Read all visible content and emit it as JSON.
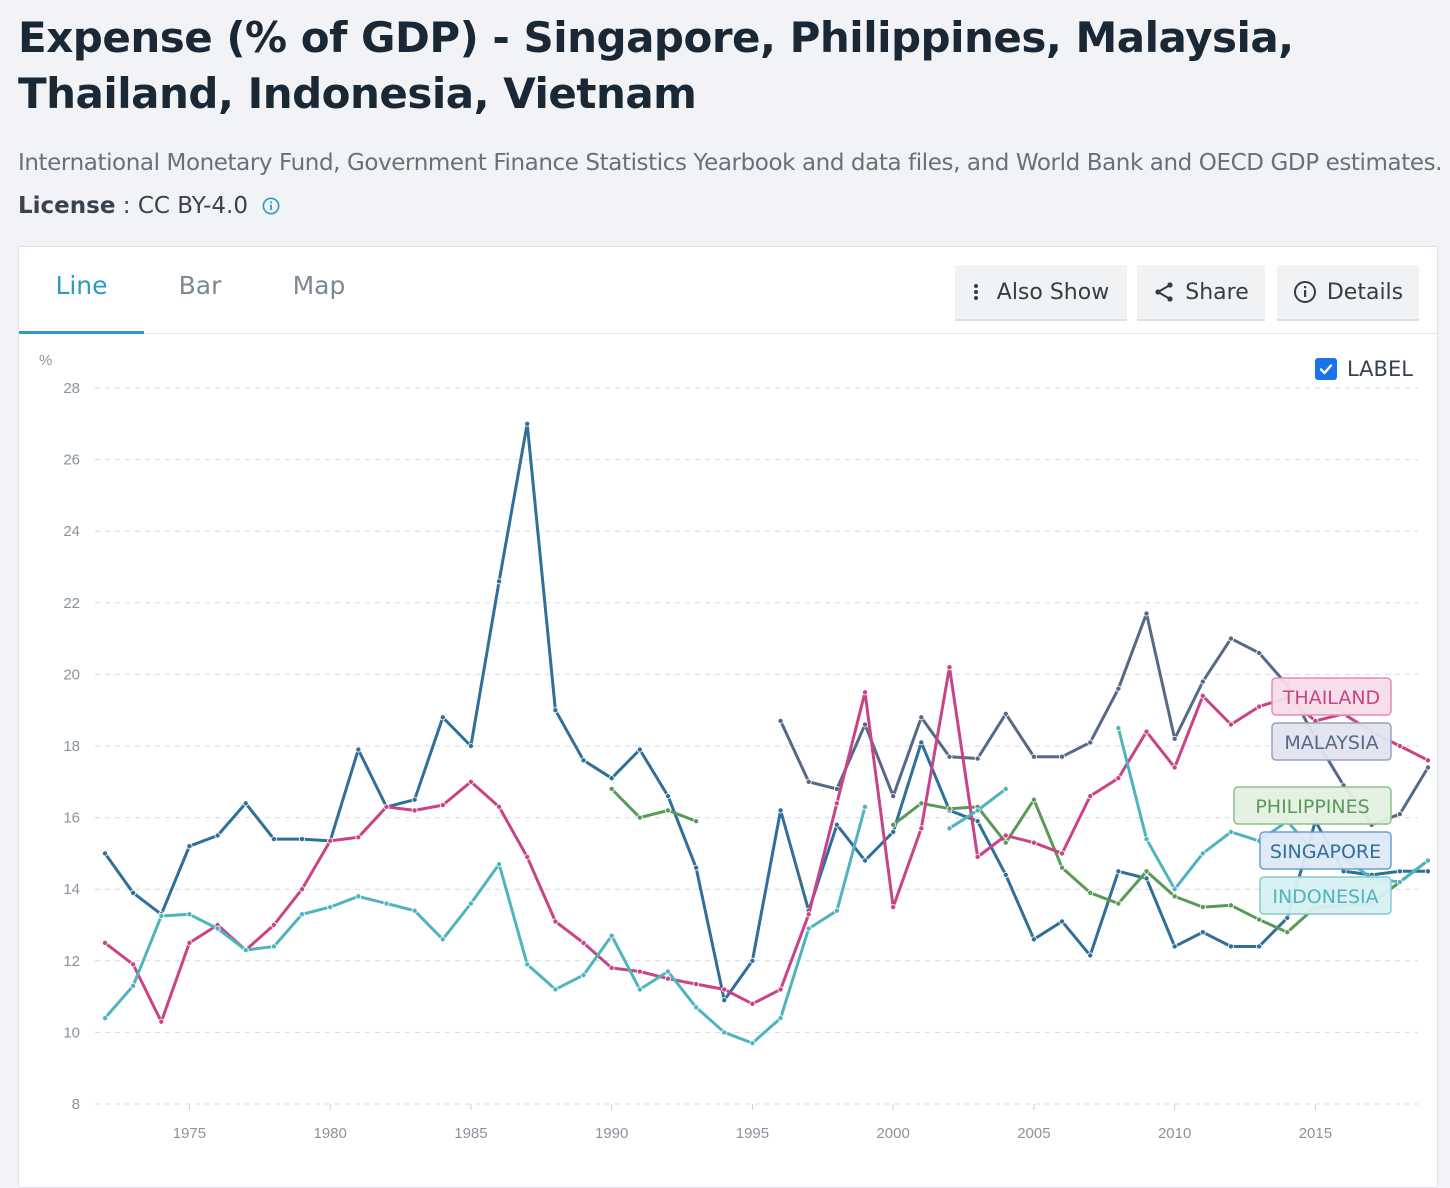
{
  "header": {
    "title": "Expense (% of GDP) - Singapore, Philippines, Malaysia, Thailand, Indonesia, Vietnam",
    "source": "International Monetary Fund, Government Finance Statistics Yearbook and data files, and World Bank and OECD GDP estimates.",
    "license_label": "License",
    "license_sep": " : ",
    "license_value": "CC BY-4.0",
    "info_icon": "info-icon"
  },
  "tabs": [
    {
      "label": "Line",
      "active": true
    },
    {
      "label": "Bar",
      "active": false
    },
    {
      "label": "Map",
      "active": false
    }
  ],
  "toolbar": {
    "also_show": "Also Show",
    "share": "Share",
    "details": "Details"
  },
  "label_toggle": {
    "label": "LABEL",
    "checked": true
  },
  "chart_data": {
    "type": "line",
    "ylabel": "%",
    "ylim": [
      8,
      28
    ],
    "yticks": [
      8,
      10,
      12,
      14,
      16,
      18,
      20,
      22,
      24,
      26,
      28
    ],
    "xlim": [
      1972,
      2019
    ],
    "xticks": [
      1975,
      1980,
      1985,
      1990,
      1995,
      2000,
      2005,
      2010,
      2015
    ],
    "grid": true,
    "series": [
      {
        "name": "SINGAPORE",
        "color": "#2f6f99",
        "label_bg": "#dde9f5",
        "label_border": "#6b9fd0",
        "label_color": "#2f6f99",
        "points": [
          [
            1972,
            15.0
          ],
          [
            1973,
            13.9
          ],
          [
            1974,
            13.3
          ],
          [
            1975,
            15.2
          ],
          [
            1976,
            15.5
          ],
          [
            1977,
            16.4
          ],
          [
            1978,
            15.4
          ],
          [
            1979,
            15.4
          ],
          [
            1980,
            15.35
          ],
          [
            1981,
            17.9
          ],
          [
            1982,
            16.3
          ],
          [
            1983,
            16.5
          ],
          [
            1984,
            18.8
          ],
          [
            1985,
            18.0
          ],
          [
            1986,
            22.6
          ],
          [
            1987,
            27.0
          ],
          [
            1988,
            19.0
          ],
          [
            1989,
            17.6
          ],
          [
            1990,
            17.1
          ],
          [
            1991,
            17.9
          ],
          [
            1992,
            16.6
          ],
          [
            1993,
            14.6
          ],
          [
            1994,
            10.9
          ],
          [
            1995,
            12.0
          ],
          [
            1996,
            16.2
          ],
          [
            1997,
            13.4
          ],
          [
            1998,
            15.8
          ],
          [
            1999,
            14.8
          ],
          [
            2000,
            15.6
          ],
          [
            2001,
            18.1
          ],
          [
            2002,
            16.2
          ],
          [
            2003,
            15.9
          ],
          [
            2004,
            14.4
          ],
          [
            2005,
            12.6
          ],
          [
            2006,
            13.1
          ],
          [
            2007,
            12.15
          ],
          [
            2008,
            14.5
          ],
          [
            2009,
            14.3
          ],
          [
            2010,
            12.4
          ],
          [
            2011,
            12.8
          ],
          [
            2012,
            12.4
          ],
          [
            2013,
            12.4
          ],
          [
            2014,
            13.2
          ],
          [
            2015,
            15.9
          ],
          [
            2016,
            14.5
          ],
          [
            2017,
            14.4
          ],
          [
            2018,
            14.5
          ],
          [
            2019,
            14.5
          ]
        ]
      },
      {
        "name": "PHILIPPINES",
        "color": "#5a9a58",
        "label_bg": "#e4f1e2",
        "label_border": "#8cc18a",
        "label_color": "#5a9a58",
        "points": [
          [
            1990,
            16.8
          ],
          [
            1991,
            16.0
          ],
          [
            1992,
            16.2
          ],
          [
            1993,
            15.9
          ],
          null,
          [
            2000,
            15.8
          ],
          [
            2001,
            16.4
          ],
          [
            2002,
            16.25
          ],
          [
            2003,
            16.3
          ],
          [
            2004,
            15.3
          ],
          [
            2005,
            16.5
          ],
          [
            2006,
            14.6
          ],
          [
            2007,
            13.9
          ],
          [
            2008,
            13.6
          ],
          [
            2009,
            14.5
          ],
          [
            2010,
            13.8
          ],
          [
            2011,
            13.5
          ],
          [
            2012,
            13.55
          ],
          [
            2013,
            13.15
          ],
          [
            2014,
            12.8
          ],
          [
            2015,
            13.5
          ],
          [
            2016,
            13.55
          ],
          [
            2017,
            13.6
          ],
          [
            2018,
            14.2
          ],
          [
            2019,
            14.8
          ]
        ]
      },
      {
        "name": "MALAYSIA",
        "color": "#566a88",
        "label_bg": "#e2e5f0",
        "label_border": "#9aa2c4",
        "label_color": "#566a88",
        "points": [
          [
            1996,
            18.7
          ],
          [
            1997,
            17.0
          ],
          [
            1998,
            16.8
          ],
          [
            1999,
            18.6
          ],
          [
            2000,
            16.6
          ],
          [
            2001,
            18.8
          ],
          [
            2002,
            17.7
          ],
          [
            2003,
            17.65
          ],
          [
            2004,
            18.9
          ],
          [
            2005,
            17.7
          ],
          [
            2006,
            17.7
          ],
          [
            2007,
            18.1
          ],
          [
            2008,
            19.6
          ],
          [
            2009,
            21.7
          ],
          [
            2010,
            18.2
          ],
          [
            2011,
            19.8
          ],
          [
            2012,
            21.0
          ],
          [
            2013,
            20.6
          ],
          [
            2014,
            19.7
          ],
          [
            2015,
            18.2
          ],
          [
            2016,
            16.9
          ],
          [
            2017,
            15.8
          ],
          [
            2018,
            16.1
          ],
          [
            2019,
            17.4
          ]
        ]
      },
      {
        "name": "THAILAND",
        "color": "#c94486",
        "label_bg": "#f7dde9",
        "label_border": "#e38db3",
        "label_color": "#c94486",
        "points": [
          [
            1972,
            12.5
          ],
          [
            1973,
            11.9
          ],
          [
            1974,
            10.3
          ],
          [
            1975,
            12.5
          ],
          [
            1976,
            13.0
          ],
          [
            1977,
            12.3
          ],
          [
            1978,
            13.0
          ],
          [
            1979,
            14.0
          ],
          [
            1980,
            15.35
          ],
          [
            1981,
            15.45
          ],
          [
            1982,
            16.3
          ],
          [
            1983,
            16.2
          ],
          [
            1984,
            16.35
          ],
          [
            1985,
            17.0
          ],
          [
            1986,
            16.3
          ],
          [
            1987,
            14.9
          ],
          [
            1988,
            13.1
          ],
          [
            1989,
            12.5
          ],
          [
            1990,
            11.8
          ],
          [
            1991,
            11.7
          ],
          [
            1992,
            11.5
          ],
          [
            1993,
            11.35
          ],
          [
            1994,
            11.2
          ],
          [
            1995,
            10.8
          ],
          [
            1996,
            11.2
          ],
          [
            1997,
            13.3
          ],
          [
            1998,
            16.4
          ],
          [
            1999,
            19.5
          ],
          [
            2000,
            13.5
          ],
          [
            2001,
            15.7
          ],
          [
            2002,
            20.2
          ],
          [
            2003,
            14.9
          ],
          [
            2004,
            15.5
          ],
          [
            2005,
            15.3
          ],
          [
            2006,
            15.0
          ],
          [
            2007,
            16.6
          ],
          [
            2008,
            17.1
          ],
          [
            2009,
            18.4
          ],
          [
            2010,
            17.4
          ],
          [
            2011,
            19.4
          ],
          [
            2012,
            18.6
          ],
          [
            2013,
            19.1
          ],
          [
            2014,
            19.35
          ],
          [
            2015,
            18.7
          ],
          [
            2016,
            18.9
          ],
          [
            2017,
            18.4
          ],
          [
            2018,
            18.0
          ],
          [
            2019,
            17.6
          ]
        ]
      },
      {
        "name": "INDONESIA",
        "color": "#4fb4be",
        "label_bg": "#d8f0f2",
        "label_border": "#86cbd2",
        "label_color": "#4fb4be",
        "points": [
          [
            1972,
            10.4
          ],
          [
            1973,
            11.3
          ],
          [
            1974,
            13.25
          ],
          [
            1975,
            13.3
          ],
          [
            1976,
            12.9
          ],
          [
            1977,
            12.3
          ],
          [
            1978,
            12.4
          ],
          [
            1979,
            13.3
          ],
          [
            1980,
            13.5
          ],
          [
            1981,
            13.8
          ],
          [
            1982,
            13.6
          ],
          [
            1983,
            13.4
          ],
          [
            1984,
            12.6
          ],
          [
            1985,
            13.6
          ],
          [
            1986,
            14.7
          ],
          [
            1987,
            11.9
          ],
          [
            1988,
            11.2
          ],
          [
            1989,
            11.6
          ],
          [
            1990,
            12.7
          ],
          [
            1991,
            11.2
          ],
          [
            1992,
            11.7
          ],
          [
            1993,
            10.7
          ],
          [
            1994,
            10.0
          ],
          [
            1995,
            9.7
          ],
          [
            1996,
            10.4
          ],
          [
            1997,
            12.9
          ],
          [
            1998,
            13.4
          ],
          [
            1999,
            16.3
          ],
          null,
          [
            2002,
            15.7
          ],
          [
            2003,
            16.2
          ],
          [
            2004,
            16.8
          ],
          null,
          [
            2008,
            18.5
          ],
          [
            2009,
            15.4
          ],
          [
            2010,
            14.0
          ],
          [
            2011,
            15.0
          ],
          [
            2012,
            15.6
          ],
          [
            2013,
            15.35
          ],
          [
            2014,
            15.9
          ],
          [
            2015,
            15.0
          ],
          [
            2016,
            14.9
          ],
          [
            2017,
            14.3
          ],
          [
            2018,
            14.2
          ],
          [
            2019,
            14.8
          ]
        ]
      }
    ]
  }
}
